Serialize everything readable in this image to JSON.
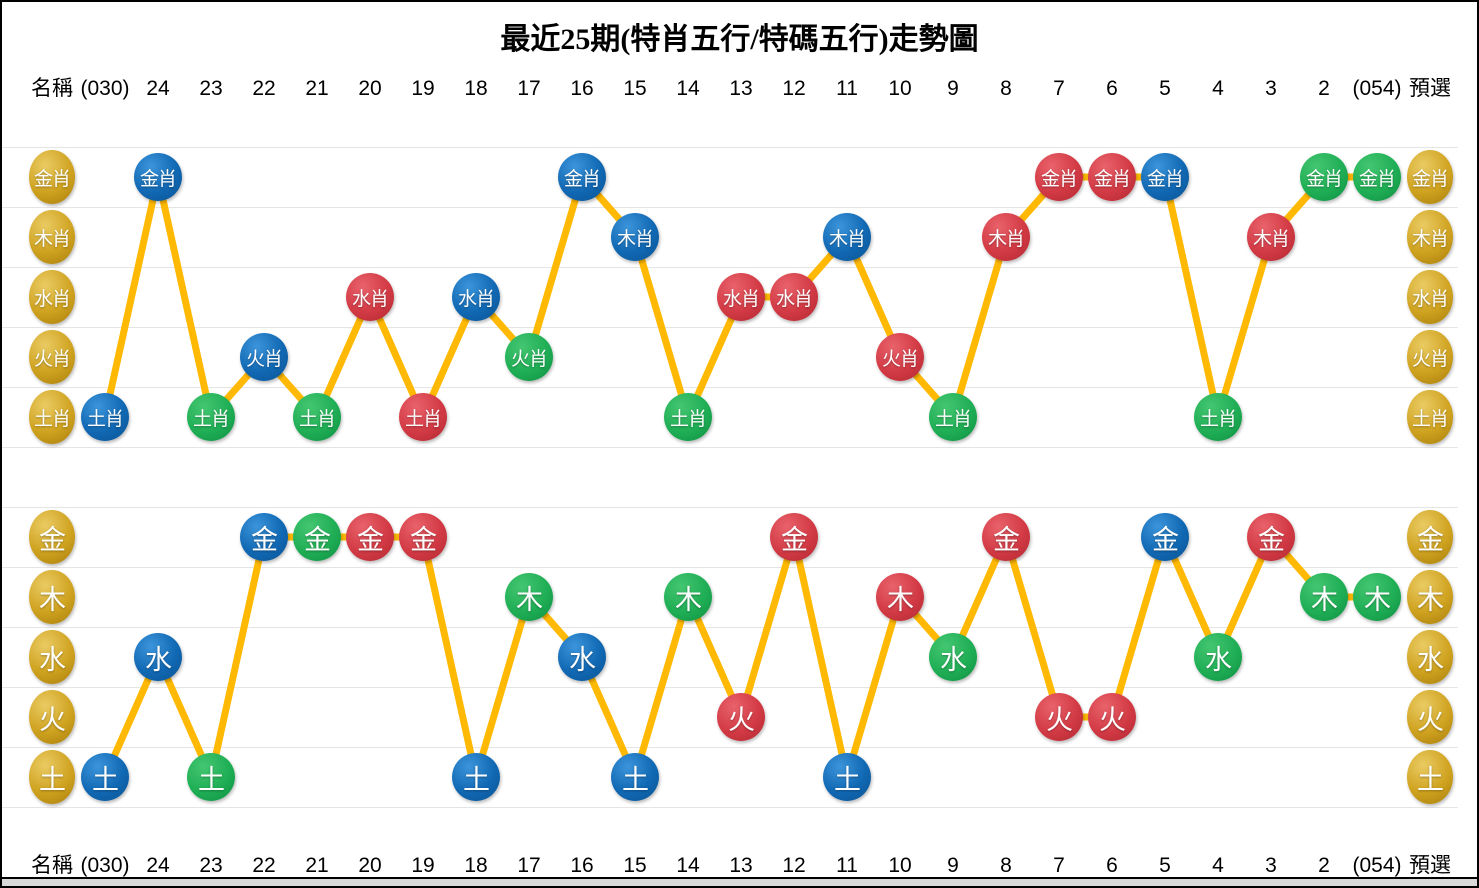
{
  "title": "最近25期(特肖五行/特碼五行)走勢圖",
  "columns": [
    "名稱",
    "(030)",
    "24",
    "23",
    "22",
    "21",
    "20",
    "19",
    "18",
    "17",
    "16",
    "15",
    "14",
    "13",
    "12",
    "11",
    "10",
    "9",
    "8",
    "7",
    "6",
    "5",
    "4",
    "3",
    "2",
    "(054)",
    "預選"
  ],
  "colors": {
    "blue": {
      "light": "#3C95DB",
      "main": "#1168B3",
      "dark": "#0A5493"
    },
    "green": {
      "light": "#44C671",
      "main": "#1FAE55",
      "dark": "#0F8F42"
    },
    "red": {
      "light": "#E9626B",
      "main": "#D23A44",
      "dark": "#B22833"
    },
    "gold": {
      "light": "#EACB63",
      "main": "#CFA21F",
      "dark": "#A87E0C"
    },
    "line": "#FFB902",
    "grid": "#E4E4E4",
    "header_text": "#000000",
    "node_text": "#FFFFFF",
    "scrollbar": "#D9D9D9"
  },
  "chart_data": [
    {
      "type": "line",
      "name": "特肖五行",
      "rows": [
        "金肖",
        "木肖",
        "水肖",
        "火肖",
        "土肖"
      ],
      "left_label_column": "名稱",
      "right_label_column": "預選",
      "points": [
        {
          "period": "(030)",
          "value": "土肖",
          "color": "blue"
        },
        {
          "period": "24",
          "value": "金肖",
          "color": "blue"
        },
        {
          "period": "23",
          "value": "土肖",
          "color": "green"
        },
        {
          "period": "22",
          "value": "火肖",
          "color": "blue"
        },
        {
          "period": "21",
          "value": "土肖",
          "color": "green"
        },
        {
          "period": "20",
          "value": "水肖",
          "color": "red"
        },
        {
          "period": "19",
          "value": "土肖",
          "color": "red"
        },
        {
          "period": "18",
          "value": "水肖",
          "color": "blue"
        },
        {
          "period": "17",
          "value": "火肖",
          "color": "green"
        },
        {
          "period": "16",
          "value": "金肖",
          "color": "blue"
        },
        {
          "period": "15",
          "value": "木肖",
          "color": "blue"
        },
        {
          "period": "14",
          "value": "土肖",
          "color": "green"
        },
        {
          "period": "13",
          "value": "水肖",
          "color": "red"
        },
        {
          "period": "12",
          "value": "水肖",
          "color": "red"
        },
        {
          "period": "11",
          "value": "木肖",
          "color": "blue"
        },
        {
          "period": "10",
          "value": "火肖",
          "color": "red"
        },
        {
          "period": "9",
          "value": "土肖",
          "color": "green"
        },
        {
          "period": "8",
          "value": "木肖",
          "color": "red"
        },
        {
          "period": "7",
          "value": "金肖",
          "color": "red"
        },
        {
          "period": "6",
          "value": "金肖",
          "color": "red"
        },
        {
          "period": "5",
          "value": "金肖",
          "color": "blue"
        },
        {
          "period": "4",
          "value": "土肖",
          "color": "green"
        },
        {
          "period": "3",
          "value": "木肖",
          "color": "red"
        },
        {
          "period": "2",
          "value": "金肖",
          "color": "green"
        },
        {
          "period": "(054)",
          "value": "金肖",
          "color": "green"
        }
      ]
    },
    {
      "type": "line",
      "name": "特碼五行",
      "rows": [
        "金",
        "木",
        "水",
        "火",
        "土"
      ],
      "left_label_column": "名稱",
      "right_label_column": "預選",
      "points": [
        {
          "period": "(030)",
          "value": "土",
          "color": "blue"
        },
        {
          "period": "24",
          "value": "水",
          "color": "blue"
        },
        {
          "period": "23",
          "value": "土",
          "color": "green"
        },
        {
          "period": "22",
          "value": "金",
          "color": "blue"
        },
        {
          "period": "21",
          "value": "金",
          "color": "green"
        },
        {
          "period": "20",
          "value": "金",
          "color": "red"
        },
        {
          "period": "19",
          "value": "金",
          "color": "red"
        },
        {
          "period": "18",
          "value": "土",
          "color": "blue"
        },
        {
          "period": "17",
          "value": "木",
          "color": "green"
        },
        {
          "period": "16",
          "value": "水",
          "color": "blue"
        },
        {
          "period": "15",
          "value": "土",
          "color": "blue"
        },
        {
          "period": "14",
          "value": "木",
          "color": "green"
        },
        {
          "period": "13",
          "value": "火",
          "color": "red"
        },
        {
          "period": "12",
          "value": "金",
          "color": "red"
        },
        {
          "period": "11",
          "value": "土",
          "color": "blue"
        },
        {
          "period": "10",
          "value": "木",
          "color": "red"
        },
        {
          "period": "9",
          "value": "水",
          "color": "green"
        },
        {
          "period": "8",
          "value": "金",
          "color": "red"
        },
        {
          "period": "7",
          "value": "火",
          "color": "red"
        },
        {
          "period": "6",
          "value": "火",
          "color": "red"
        },
        {
          "period": "5",
          "value": "金",
          "color": "blue"
        },
        {
          "period": "4",
          "value": "水",
          "color": "green"
        },
        {
          "period": "3",
          "value": "金",
          "color": "red"
        },
        {
          "period": "2",
          "value": "木",
          "color": "green"
        },
        {
          "period": "(054)",
          "value": "木",
          "color": "green"
        }
      ]
    }
  ]
}
